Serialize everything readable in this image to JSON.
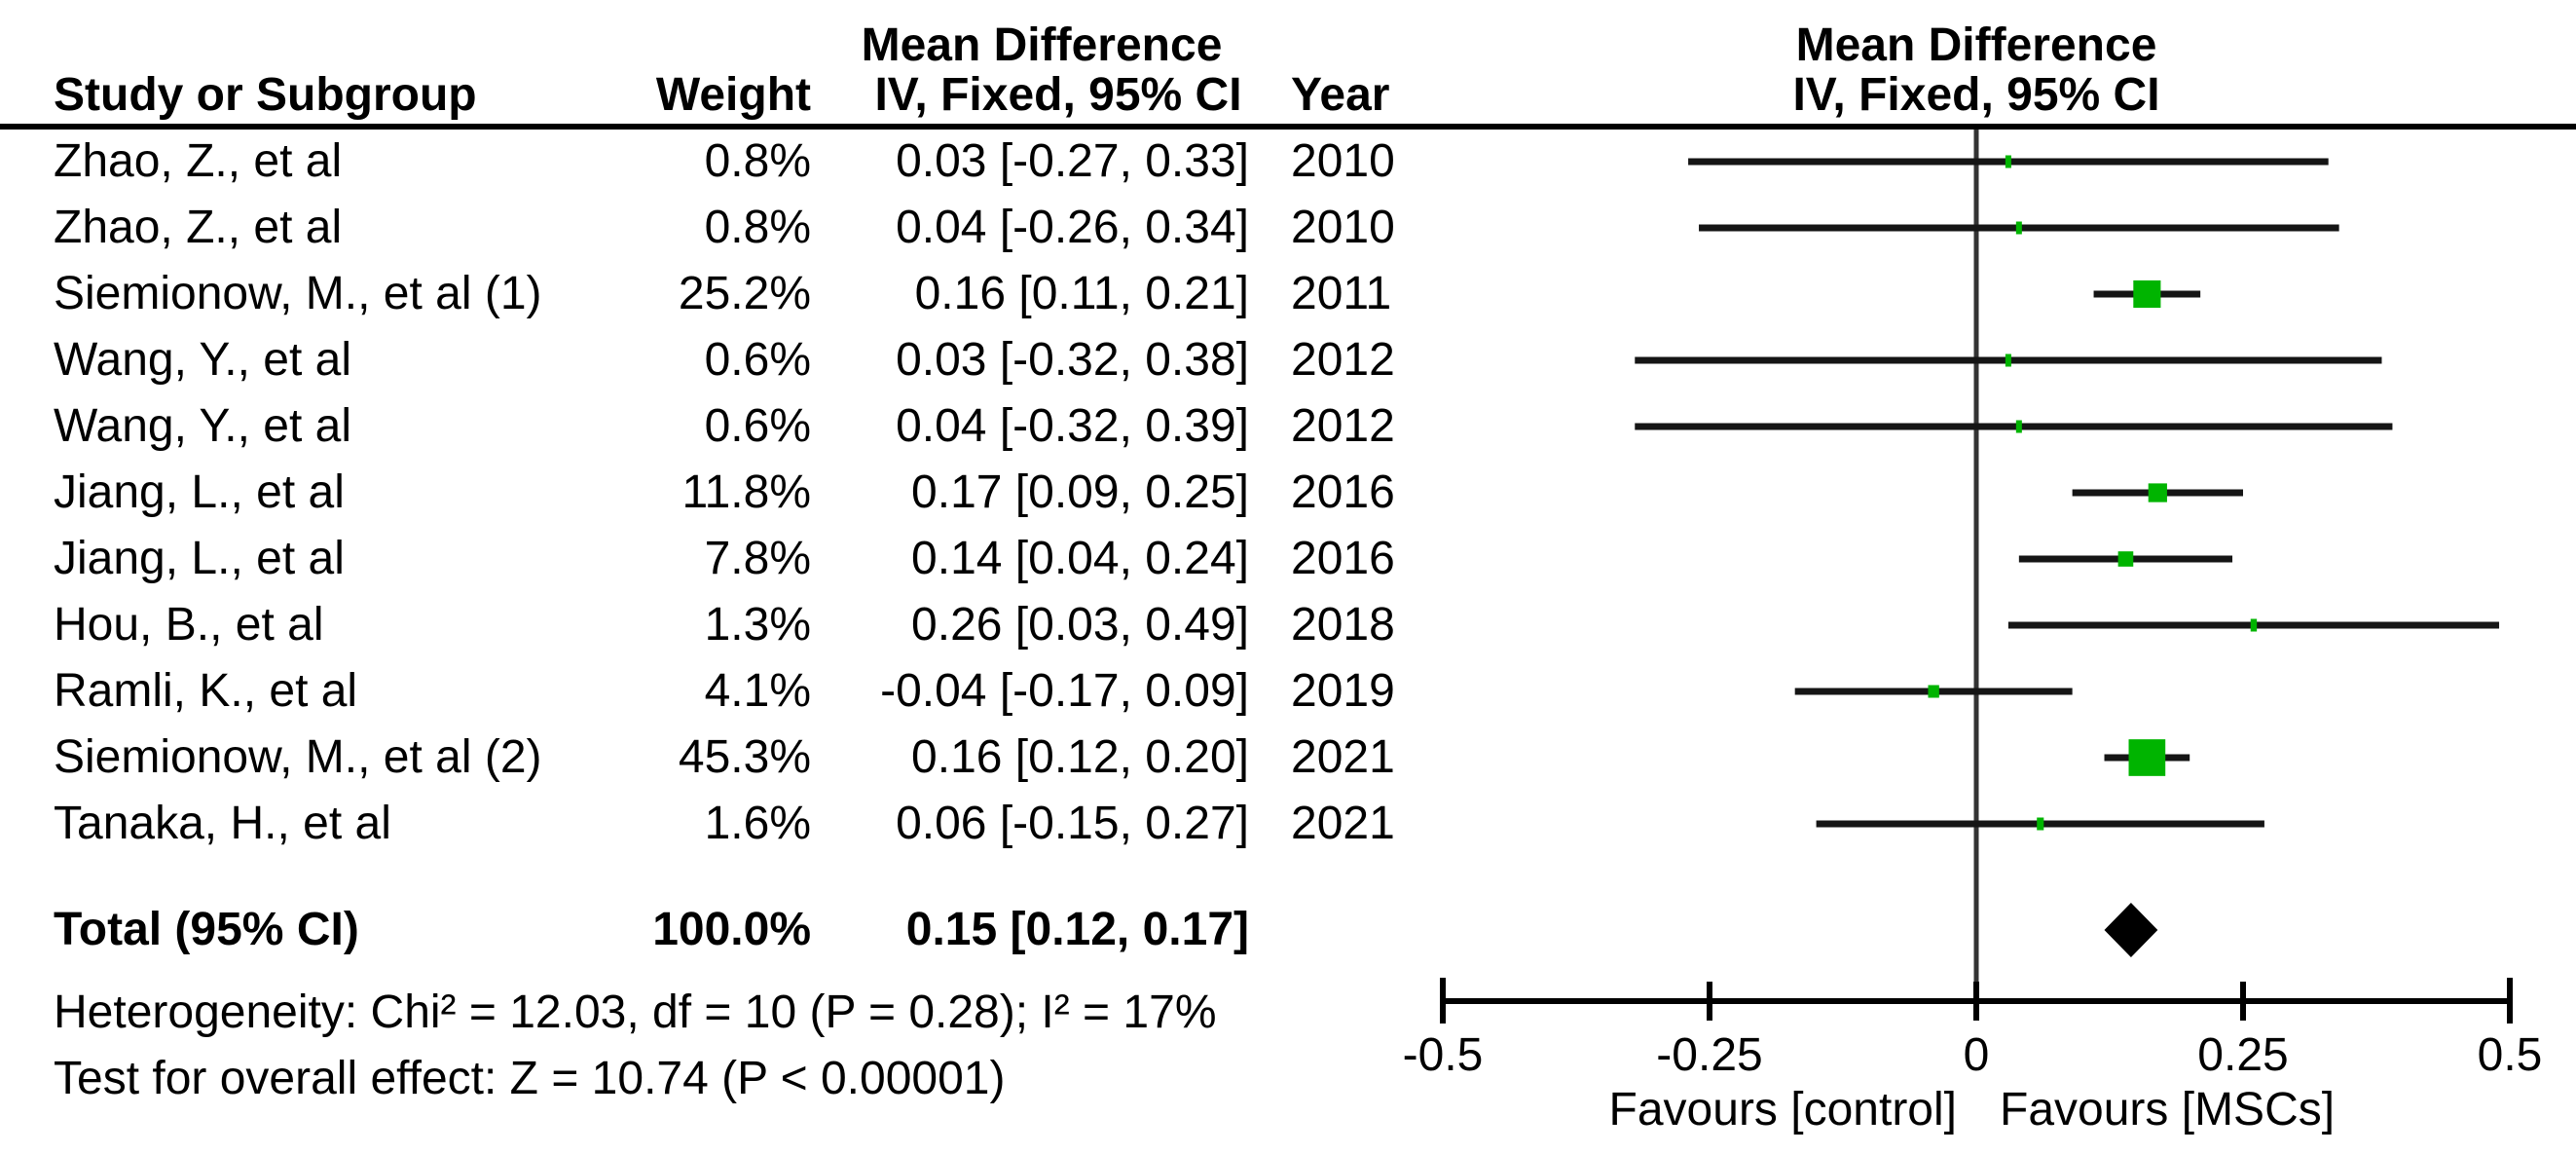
{
  "ui": {
    "left_group_header": "Mean Difference",
    "right_group_header": "Mean Difference",
    "col_study": "Study or Subgroup",
    "col_weight": "Weight",
    "col_ci": "IV, Fixed, 95% CI",
    "col_year": "Year",
    "right_col_ci": "IV, Fixed, 95% CI",
    "total_label": "Total (95% CI)",
    "total_weight": "100.0%",
    "total_ci": "0.15 [0.12, 0.17]",
    "heterogeneity": "Heterogeneity: Chi² = 12.03, df = 10 (P = 0.28); I² = 17%",
    "overall_effect": "Test for overall effect: Z = 10.74 (P < 0.00001)",
    "favours_left": "Favours [control]",
    "favours_right": "Favours [MSCs]"
  },
  "colors": {
    "marker_green": "#00B400",
    "diamond_black": "#000000",
    "ci_line": "#151515",
    "zero_line": "#333333",
    "axis": "#000000",
    "text": "#000000",
    "background": "#FFFFFF"
  },
  "chart_data": {
    "type": "forest",
    "effect_measure": "Mean Difference",
    "model": "IV, Fixed, 95% CI",
    "axis": {
      "min": -0.5,
      "max": 0.5,
      "tick_values": [
        -0.5,
        -0.25,
        0,
        0.25,
        0.5
      ],
      "tick_labels": [
        "-0.5",
        "-0.25",
        "0",
        "0.25",
        "0.5"
      ],
      "xlabel_left": "Favours [control]",
      "xlabel_right": "Favours [MSCs]"
    },
    "studies": [
      {
        "study": "Zhao, Z., et al",
        "weight": "0.8%",
        "weight_pct": 0.8,
        "mean_diff": 0.03,
        "ci_low": -0.27,
        "ci_high": 0.33,
        "ci_label": "0.03 [-0.27, 0.33]",
        "year": "2010"
      },
      {
        "study": "Zhao, Z., et al",
        "weight": "0.8%",
        "weight_pct": 0.8,
        "mean_diff": 0.04,
        "ci_low": -0.26,
        "ci_high": 0.34,
        "ci_label": "0.04 [-0.26, 0.34]",
        "year": "2010"
      },
      {
        "study": "Siemionow, M., et al (1)",
        "weight": "25.2%",
        "weight_pct": 25.2,
        "mean_diff": 0.16,
        "ci_low": 0.11,
        "ci_high": 0.21,
        "ci_label": "0.16 [0.11, 0.21]",
        "year": "2011"
      },
      {
        "study": "Wang, Y., et al",
        "weight": "0.6%",
        "weight_pct": 0.6,
        "mean_diff": 0.03,
        "ci_low": -0.32,
        "ci_high": 0.38,
        "ci_label": "0.03 [-0.32, 0.38]",
        "year": "2012"
      },
      {
        "study": "Wang, Y., et al",
        "weight": "0.6%",
        "weight_pct": 0.6,
        "mean_diff": 0.04,
        "ci_low": -0.32,
        "ci_high": 0.39,
        "ci_label": "0.04 [-0.32, 0.39]",
        "year": "2012"
      },
      {
        "study": "Jiang, L., et al",
        "weight": "11.8%",
        "weight_pct": 11.8,
        "mean_diff": 0.17,
        "ci_low": 0.09,
        "ci_high": 0.25,
        "ci_label": "0.17 [0.09, 0.25]",
        "year": "2016"
      },
      {
        "study": "Jiang, L., et al",
        "weight": "7.8%",
        "weight_pct": 7.8,
        "mean_diff": 0.14,
        "ci_low": 0.04,
        "ci_high": 0.24,
        "ci_label": "0.14 [0.04, 0.24]",
        "year": "2016"
      },
      {
        "study": "Hou, B., et al",
        "weight": "1.3%",
        "weight_pct": 1.3,
        "mean_diff": 0.26,
        "ci_low": 0.03,
        "ci_high": 0.49,
        "ci_label": "0.26 [0.03, 0.49]",
        "year": "2018"
      },
      {
        "study": "Ramli, K., et al",
        "weight": "4.1%",
        "weight_pct": 4.1,
        "mean_diff": -0.04,
        "ci_low": -0.17,
        "ci_high": 0.09,
        "ci_label": "-0.04 [-0.17, 0.09]",
        "year": "2019"
      },
      {
        "study": "Siemionow, M., et al (2)",
        "weight": "45.3%",
        "weight_pct": 45.3,
        "mean_diff": 0.16,
        "ci_low": 0.12,
        "ci_high": 0.2,
        "ci_label": "0.16 [0.12, 0.20]",
        "year": "2021"
      },
      {
        "study": "Tanaka, H., et al",
        "weight": "1.6%",
        "weight_pct": 1.6,
        "mean_diff": 0.06,
        "ci_low": -0.15,
        "ci_high": 0.27,
        "ci_label": "0.06 [-0.15, 0.27]",
        "year": "2021"
      }
    ],
    "total": {
      "label": "Total (95% CI)",
      "weight": "100.0%",
      "weight_pct": 100.0,
      "mean_diff": 0.15,
      "ci_low": 0.12,
      "ci_high": 0.17,
      "ci_label": "0.15 [0.12, 0.17]"
    },
    "heterogeneity": "Heterogeneity: Chi² = 12.03, df = 10 (P = 0.28); I² = 17%",
    "overall_effect": "Test for overall effect: Z = 10.74 (P < 0.00001)"
  }
}
